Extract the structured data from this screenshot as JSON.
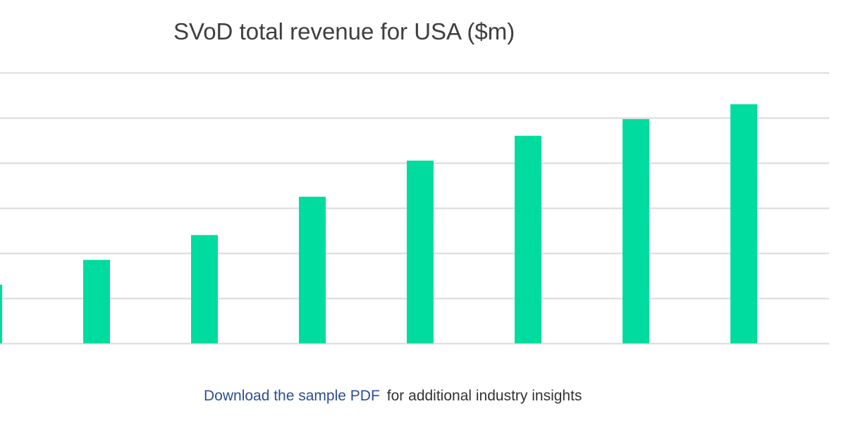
{
  "chart_data": {
    "type": "bar",
    "title": "SVoD total revenue for USA ($m)",
    "xlabel": "",
    "ylabel": "",
    "categories": [
      "",
      "",
      "",
      "",
      "",
      "",
      "",
      ""
    ],
    "values": [
      1.3,
      1.85,
      2.4,
      3.25,
      4.05,
      4.6,
      4.97,
      5.3
    ],
    "ylim": [
      0,
      6
    ],
    "grid": true,
    "bar_color": "#00dc9f",
    "grid_color": "#d9d9d9"
  },
  "footer": {
    "link_text": "Download the sample PDF",
    "text": "for additional industry insights"
  }
}
